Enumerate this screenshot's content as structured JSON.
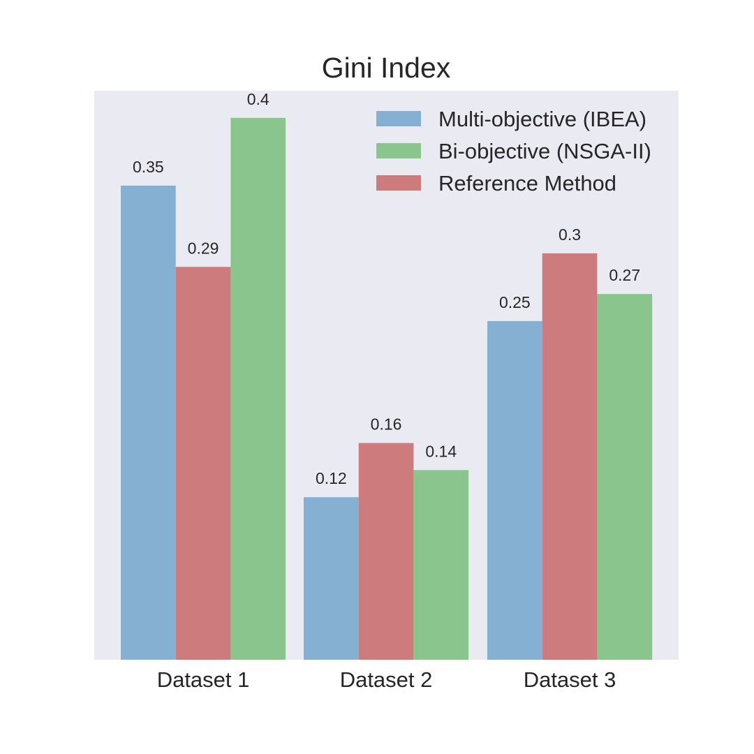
{
  "chart_data": {
    "type": "bar",
    "title": "Gini Index",
    "xlabel": "",
    "ylabel": "",
    "categories": [
      "Dataset 1",
      "Dataset 2",
      "Dataset 3"
    ],
    "ylim": [
      0,
      0.42
    ],
    "grid": false,
    "legend_position": "top-right",
    "series": [
      {
        "name": "Multi-objective (IBEA)",
        "color": "#86b0d2",
        "values": [
          0.35,
          0.12,
          0.25
        ],
        "labels": [
          "0.35",
          "0.12",
          "0.25"
        ]
      },
      {
        "name": "Reference Method",
        "color": "#ce7b7d",
        "values": [
          0.29,
          0.16,
          0.3
        ],
        "labels": [
          "0.29",
          "0.16",
          "0.3"
        ]
      },
      {
        "name": "Bi-objective (NSGA-II)",
        "color": "#8bc58e",
        "values": [
          0.4,
          0.14,
          0.27
        ],
        "labels": [
          "0.4",
          "0.14",
          "0.27"
        ]
      }
    ],
    "bar_order_by_category": [
      [
        0,
        1,
        2
      ],
      [
        0,
        1,
        2
      ],
      [
        0,
        1,
        2
      ]
    ],
    "legend_order": [
      0,
      2,
      1
    ],
    "background_color": "#eaeaf2"
  }
}
